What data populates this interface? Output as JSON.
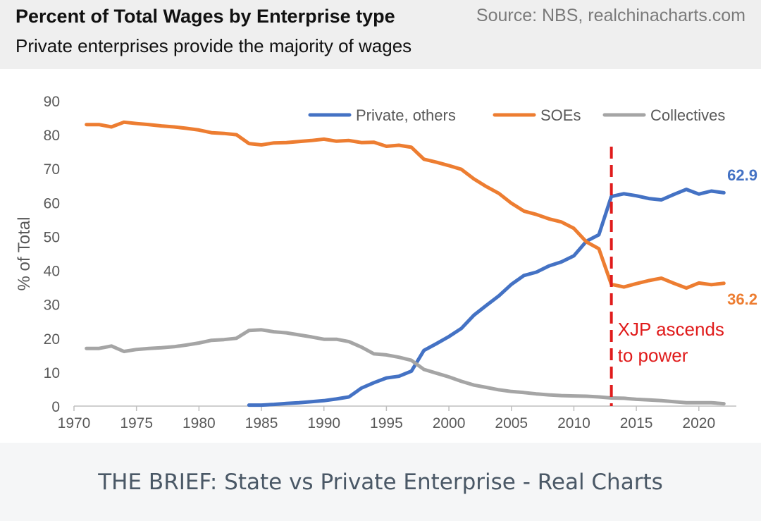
{
  "header": {
    "title": "Percent of Total Wages by Enterprise type",
    "source": "Source: NBS, realchinacharts.com",
    "subtitle": "Private enterprises provide the majority of wages"
  },
  "footer": {
    "text": "THE BRIEF: State vs Private Enterprise - Real Charts"
  },
  "colors": {
    "private": "#4472c4",
    "soe": "#ed7d31",
    "collective": "#a5a5a5",
    "marker": "#e01b1b",
    "axis_text": "#595959"
  },
  "chart_data": {
    "type": "line",
    "ylabel": "% of Total",
    "xlabel": "",
    "xlim": [
      1970,
      2023
    ],
    "ylim": [
      0,
      90
    ],
    "x_ticks": [
      1970,
      1975,
      1980,
      1985,
      1990,
      1995,
      2000,
      2005,
      2010,
      2015,
      2020
    ],
    "y_ticks": [
      0,
      10,
      20,
      30,
      40,
      50,
      60,
      70,
      80,
      90
    ],
    "legend_position": "top-right",
    "series": [
      {
        "name": "Private, others",
        "key": "private",
        "x": [
          1984,
          1985,
          1986,
          1987,
          1988,
          1989,
          1990,
          1991,
          1992,
          1993,
          1994,
          1995,
          1996,
          1997,
          1998,
          1999,
          2000,
          2001,
          2002,
          2003,
          2004,
          2005,
          2006,
          2007,
          2008,
          2009,
          2010,
          2011,
          2012,
          2013,
          2014,
          2015,
          2016,
          2017,
          2018,
          2019,
          2020,
          2021,
          2022
        ],
        "values": [
          0.3,
          0.3,
          0.5,
          0.8,
          1.0,
          1.3,
          1.6,
          2.1,
          2.7,
          5.3,
          6.9,
          8.3,
          8.8,
          10.3,
          16.4,
          18.4,
          20.5,
          22.9,
          26.8,
          29.7,
          32.5,
          35.9,
          38.5,
          39.5,
          41.3,
          42.5,
          44.3,
          48.6,
          50.5,
          61.8,
          62.6,
          62.0,
          61.2,
          60.8,
          62.4,
          63.9,
          62.5,
          63.4,
          62.9
        ]
      },
      {
        "name": "SOEs",
        "key": "soe",
        "x": [
          1971,
          1972,
          1973,
          1974,
          1975,
          1976,
          1977,
          1978,
          1979,
          1980,
          1981,
          1982,
          1983,
          1984,
          1985,
          1986,
          1987,
          1988,
          1989,
          1990,
          1991,
          1992,
          1993,
          1994,
          1995,
          1996,
          1997,
          1998,
          1999,
          2000,
          2001,
          2002,
          2003,
          2004,
          2005,
          2006,
          2007,
          2008,
          2009,
          2010,
          2011,
          2012,
          2013,
          2014,
          2015,
          2016,
          2017,
          2018,
          2019,
          2020,
          2021,
          2022
        ],
        "values": [
          83.0,
          83.0,
          82.3,
          83.7,
          83.3,
          83.0,
          82.6,
          82.3,
          81.9,
          81.4,
          80.6,
          80.4,
          80.0,
          77.4,
          77.0,
          77.6,
          77.7,
          78.0,
          78.3,
          78.7,
          78.1,
          78.3,
          77.7,
          77.8,
          76.6,
          76.9,
          76.3,
          72.8,
          71.9,
          70.9,
          69.8,
          67.0,
          64.7,
          62.7,
          59.8,
          57.5,
          56.5,
          55.2,
          54.3,
          52.4,
          48.4,
          46.4,
          35.9,
          35.1,
          36.1,
          37.0,
          37.7,
          36.2,
          34.8,
          36.3,
          35.8,
          36.2
        ]
      },
      {
        "name": "Collectives",
        "key": "collective",
        "x": [
          1971,
          1972,
          1973,
          1974,
          1975,
          1976,
          1977,
          1978,
          1979,
          1980,
          1981,
          1982,
          1983,
          1984,
          1985,
          1986,
          1987,
          1988,
          1989,
          1990,
          1991,
          1992,
          1993,
          1994,
          1995,
          1996,
          1997,
          1998,
          1999,
          2000,
          2001,
          2002,
          2003,
          2004,
          2005,
          2006,
          2007,
          2008,
          2009,
          2010,
          2011,
          2012,
          2013,
          2014,
          2015,
          2016,
          2017,
          2018,
          2019,
          2020,
          2021,
          2022
        ],
        "values": [
          17.0,
          17.0,
          17.7,
          16.1,
          16.7,
          17.0,
          17.2,
          17.5,
          18.0,
          18.6,
          19.4,
          19.6,
          20.0,
          22.3,
          22.5,
          21.9,
          21.6,
          21.0,
          20.4,
          19.7,
          19.7,
          19.0,
          17.4,
          15.4,
          15.1,
          14.4,
          13.5,
          10.8,
          9.7,
          8.6,
          7.3,
          6.2,
          5.5,
          4.8,
          4.3,
          4.0,
          3.6,
          3.3,
          3.1,
          3.0,
          2.9,
          2.7,
          2.4,
          2.3,
          2.0,
          1.8,
          1.6,
          1.3,
          1.0,
          1.0,
          1.0,
          0.7
        ]
      }
    ],
    "end_labels": {
      "private": "62.9",
      "soe": "36.2"
    },
    "annotation": {
      "x": 2013,
      "line1": "XJP ascends",
      "line2": "to power"
    }
  }
}
